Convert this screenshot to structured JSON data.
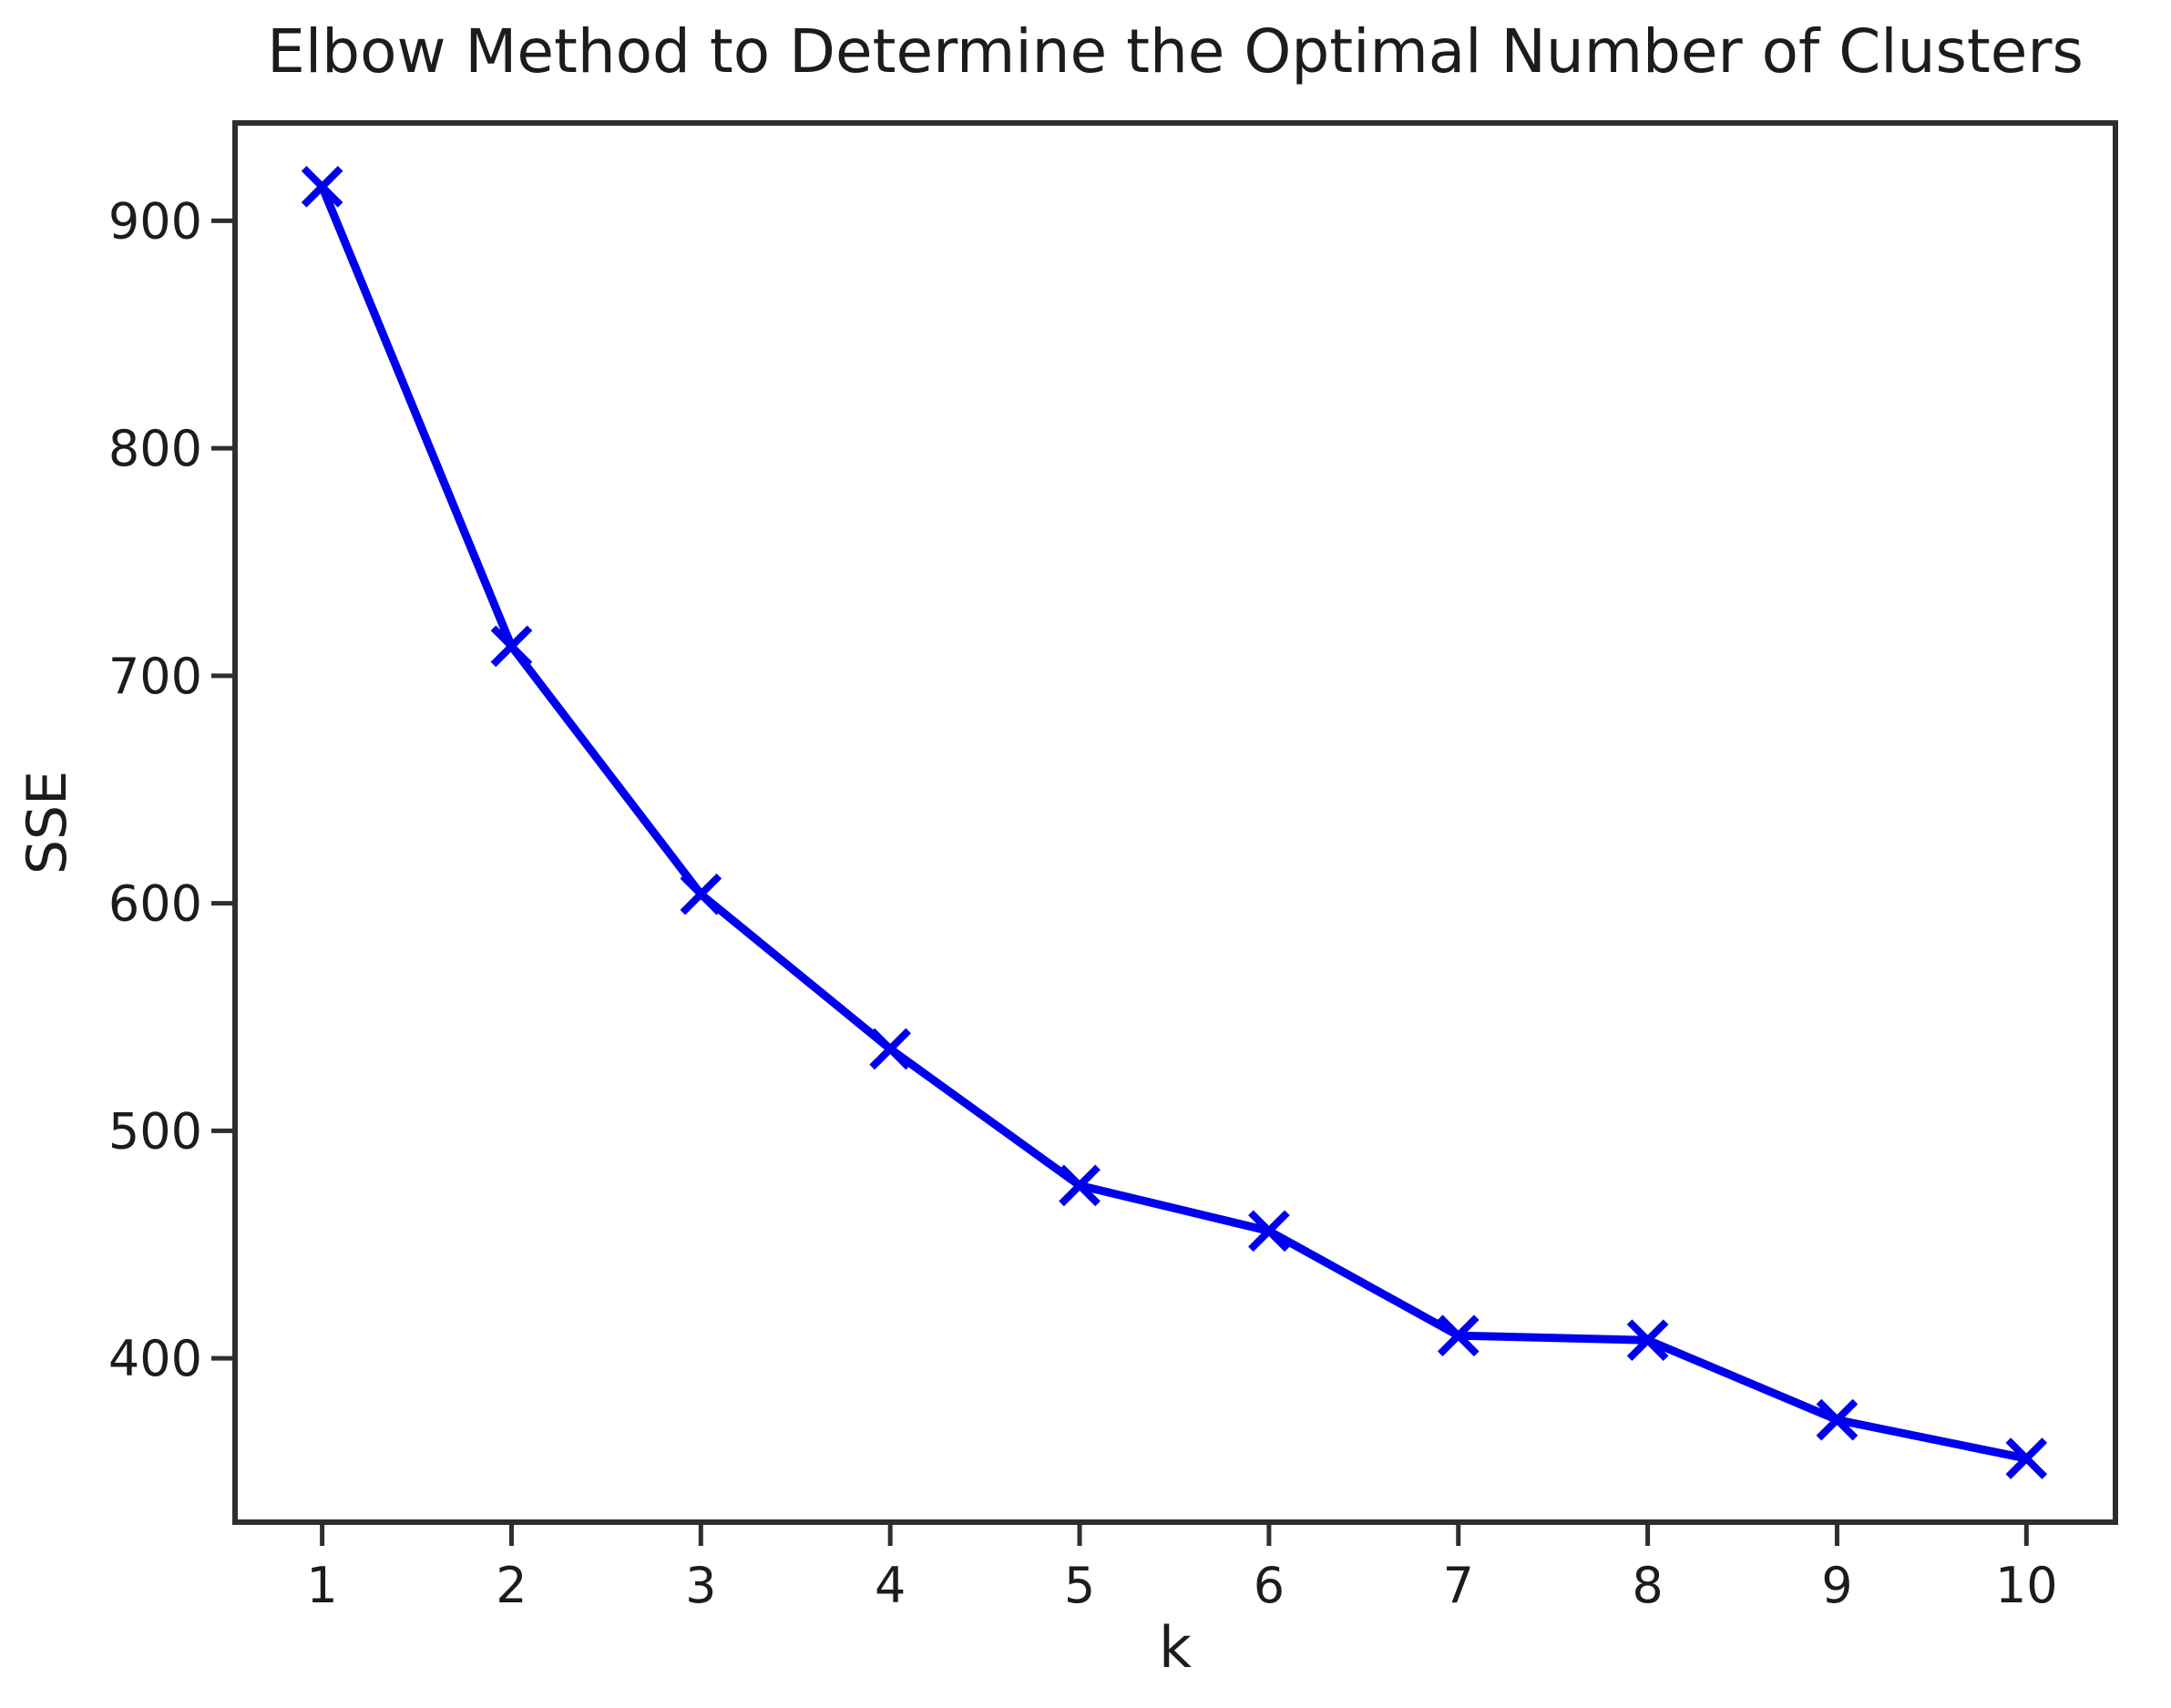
{
  "chart_data": {
    "type": "line",
    "title": "Elbow Method to Determine the Optimal Number of Clusters",
    "xlabel": "k",
    "ylabel": "SSE",
    "x": [
      1,
      2,
      3,
      4,
      5,
      6,
      7,
      8,
      9,
      10
    ],
    "series": [
      {
        "name": "SSE",
        "values": [
          915,
          713,
          604,
          536,
          476,
          456,
          410,
          408,
          373,
          356
        ],
        "color": "#0000ee",
        "marker": "x",
        "line_width": 9,
        "marker_half_size": 20,
        "marker_stroke": 8
      }
    ],
    "x_ticks": [
      "1",
      "2",
      "3",
      "4",
      "5",
      "6",
      "7",
      "8",
      "9",
      "10"
    ],
    "x_tick_values": [
      1,
      2,
      3,
      4,
      5,
      6,
      7,
      8,
      9,
      10
    ],
    "y_ticks": [
      "400",
      "500",
      "600",
      "700",
      "800",
      "900"
    ],
    "y_tick_values": [
      400,
      500,
      600,
      700,
      800,
      900
    ],
    "xlim": [
      0.54,
      10.47
    ],
    "ylim": [
      328,
      943
    ],
    "grid": false,
    "legend": false,
    "axis_color": "#2e2e2e",
    "tick_label_color": "#1c1c1c",
    "tick_font_size": 54,
    "background": "#ffffff"
  }
}
